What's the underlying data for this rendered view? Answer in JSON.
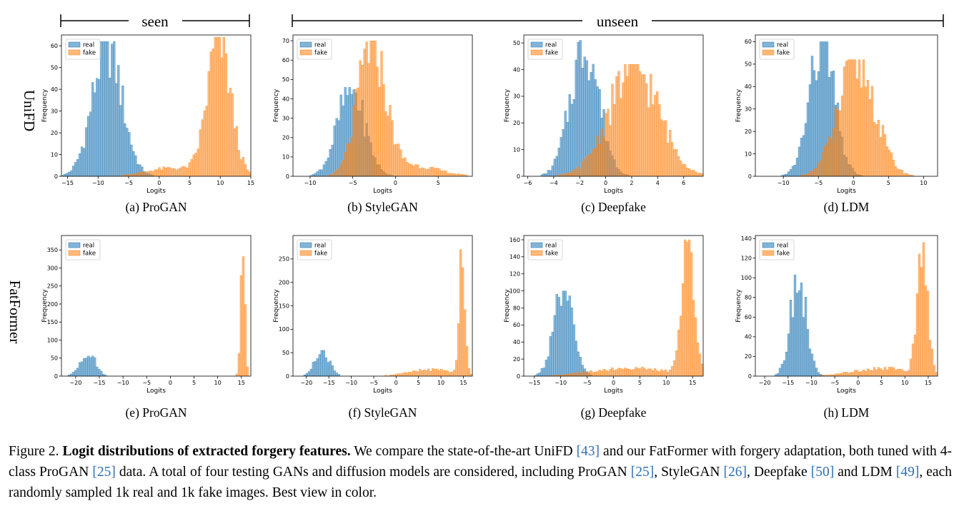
{
  "brackets": {
    "seen": "seen",
    "unseen": "unseen"
  },
  "row_labels": [
    "UniFD",
    "FatFormer"
  ],
  "chart_data": [
    {
      "id": "a",
      "type": "bar",
      "subcaption": "(a) ProGAN",
      "xlabel": "Logits",
      "ylabel": "Frequency",
      "legend": [
        "real",
        "fake"
      ],
      "legend_position": "top-left",
      "colors": {
        "real": "#1f77b4",
        "fake": "#ff7f0e"
      },
      "xlim": [
        -16,
        15
      ],
      "ylim": [
        0,
        65
      ],
      "xticks": [
        -15,
        -10,
        -5,
        0,
        5,
        10,
        15
      ],
      "yticks": [
        0,
        10,
        20,
        30,
        40,
        50,
        60
      ],
      "series": [
        {
          "name": "real",
          "center": -8.5,
          "sd": 2.4,
          "weight": 1.0,
          "peak": 62
        },
        {
          "name": "fake",
          "center": 9.8,
          "sd": 1.9,
          "weight": 1.0,
          "peak": 64,
          "tail_center": 2,
          "tail_sd": 4,
          "tail_w": 0.06
        }
      ]
    },
    {
      "id": "b",
      "type": "bar",
      "subcaption": "(b) StyleGAN",
      "xlabel": "Logits",
      "ylabel": "Frequency",
      "legend": [
        "real",
        "fake"
      ],
      "legend_position": "top-left",
      "colors": {
        "real": "#1f77b4",
        "fake": "#ff7f0e"
      },
      "xlim": [
        -12,
        9
      ],
      "ylim": [
        0,
        73
      ],
      "xticks": [
        -10,
        -5,
        0,
        5
      ],
      "yticks": [
        0,
        10,
        20,
        30,
        40,
        50,
        60,
        70
      ],
      "series": [
        {
          "name": "real",
          "center": -5.2,
          "sd": 1.6,
          "peak": 46
        },
        {
          "name": "fake",
          "center": -2.8,
          "sd": 1.6,
          "peak": 70,
          "tail_center": 2,
          "tail_sd": 3,
          "tail_w": 0.08
        }
      ]
    },
    {
      "id": "c",
      "type": "bar",
      "subcaption": "(c) Deepfake",
      "xlabel": "Logits",
      "ylabel": "Frequency",
      "legend": [
        "real",
        "fake"
      ],
      "legend_position": "top-left",
      "colors": {
        "real": "#1f77b4",
        "fake": "#ff7f0e"
      },
      "xlim": [
        -6.3,
        7.5
      ],
      "ylim": [
        0,
        53
      ],
      "xticks": [
        -6,
        -4,
        -2,
        0,
        2,
        4,
        6
      ],
      "yticks": [
        0,
        10,
        20,
        30,
        40,
        50
      ],
      "series": [
        {
          "name": "real",
          "center": -1.6,
          "sd": 1.1,
          "peak": 51
        },
        {
          "name": "fake",
          "center": 2.2,
          "sd": 1.9,
          "peak": 42
        }
      ]
    },
    {
      "id": "d",
      "type": "bar",
      "subcaption": "(d) LDM",
      "xlabel": "Logits",
      "ylabel": "Frequency",
      "legend": [
        "real",
        "fake"
      ],
      "legend_position": "top-left",
      "colors": {
        "real": "#1f77b4",
        "fake": "#ff7f0e"
      },
      "xlim": [
        -14,
        12
      ],
      "ylim": [
        0,
        63
      ],
      "xticks": [
        -10,
        -5,
        0,
        5,
        10
      ],
      "yticks": [
        0,
        10,
        20,
        30,
        40,
        50,
        60
      ],
      "series": [
        {
          "name": "real",
          "center": -4.5,
          "sd": 1.8,
          "peak": 60
        },
        {
          "name": "fake",
          "center": 0.5,
          "sd": 2.6,
          "peak": 52
        }
      ]
    },
    {
      "id": "e",
      "type": "bar",
      "subcaption": "(e) ProGAN",
      "xlabel": "Logits",
      "ylabel": "Frequency",
      "legend": [
        "real",
        "fake"
      ],
      "legend_position": "top-left",
      "colors": {
        "real": "#1f77b4",
        "fake": "#ff7f0e"
      },
      "xlim": [
        -23,
        17
      ],
      "ylim": [
        0,
        390
      ],
      "xticks": [
        -20,
        -15,
        -10,
        -5,
        0,
        5,
        10,
        15
      ],
      "yticks": [
        0,
        50,
        100,
        150,
        200,
        250,
        300,
        350
      ],
      "series": [
        {
          "name": "real",
          "center": -17.5,
          "sd": 1.6,
          "peak": 68
        },
        {
          "name": "fake",
          "center": 15.3,
          "sd": 0.45,
          "peak": 370
        }
      ]
    },
    {
      "id": "f",
      "type": "bar",
      "subcaption": "(f) StyleGAN",
      "xlabel": "Logits",
      "ylabel": "Frequency",
      "legend": [
        "real",
        "fake"
      ],
      "legend_position": "top-left",
      "colors": {
        "real": "#1f77b4",
        "fake": "#ff7f0e"
      },
      "xlim": [
        -23,
        17
      ],
      "ylim": [
        0,
        300
      ],
      "xticks": [
        -20,
        -15,
        -10,
        -5,
        0,
        5,
        10,
        15
      ],
      "yticks": [
        0,
        50,
        100,
        150,
        200,
        250
      ],
      "series": [
        {
          "name": "real",
          "center": -16.5,
          "sd": 1.6,
          "peak": 55
        },
        {
          "name": "fake",
          "center": 14.8,
          "sd": 0.6,
          "peak": 285,
          "tail_center": 8,
          "tail_sd": 5,
          "tail_w": 0.05
        }
      ]
    },
    {
      "id": "g",
      "type": "bar",
      "subcaption": "(g) Deepfake",
      "xlabel": "Logits",
      "ylabel": "Frequency",
      "legend": [
        "real",
        "fake"
      ],
      "legend_position": "top-left",
      "colors": {
        "real": "#1f77b4",
        "fake": "#ff7f0e"
      },
      "xlim": [
        -17,
        17
      ],
      "ylim": [
        0,
        165
      ],
      "xticks": [
        -15,
        -10,
        -5,
        0,
        5,
        10,
        15
      ],
      "yticks": [
        0,
        20,
        40,
        60,
        80,
        100,
        120,
        140,
        160
      ],
      "series": [
        {
          "name": "real",
          "center": -9.5,
          "sd": 1.8,
          "peak": 100
        },
        {
          "name": "fake",
          "center": 14.2,
          "sd": 1.2,
          "peak": 160,
          "tail_center": 3,
          "tail_sd": 7,
          "tail_w": 0.06
        }
      ]
    },
    {
      "id": "h",
      "type": "bar",
      "subcaption": "(h) LDM",
      "xlabel": "Logits",
      "ylabel": "Frequency",
      "legend": [
        "real",
        "fake"
      ],
      "legend_position": "top-left",
      "colors": {
        "real": "#1f77b4",
        "fake": "#ff7f0e"
      },
      "xlim": [
        -22,
        17
      ],
      "ylim": [
        0,
        143
      ],
      "xticks": [
        -20,
        -15,
        -10,
        -5,
        0,
        5,
        10,
        15
      ],
      "yticks": [
        0,
        20,
        40,
        60,
        80,
        100,
        120,
        140
      ],
      "series": [
        {
          "name": "real",
          "center": -12.8,
          "sd": 1.7,
          "peak": 103
        },
        {
          "name": "fake",
          "center": 13.8,
          "sd": 1.1,
          "peak": 136,
          "tail_center": 5,
          "tail_sd": 6,
          "tail_w": 0.06
        }
      ]
    }
  ],
  "caption": {
    "prefix": "Figure 2. ",
    "bold": "Logit distributions of extracted forgery features.",
    "t1": " We compare the state-of-the-art UniFD ",
    "c1": "[43]",
    "t2": " and our FatFormer with forgery adaptation, both tuned with 4-class ProGAN ",
    "c2": "[25]",
    "t3": " data.  A total of four testing GANs and diffusion models are considered, including ProGAN ",
    "c3": "[25]",
    "t4": ", StyleGAN ",
    "c4": "[26]",
    "t5": ", Deepfake ",
    "c5": "[50]",
    "t6": " and LDM ",
    "c6": "[49]",
    "t7": ", each randomly sampled 1k real and 1k fake images. Best view in color."
  }
}
